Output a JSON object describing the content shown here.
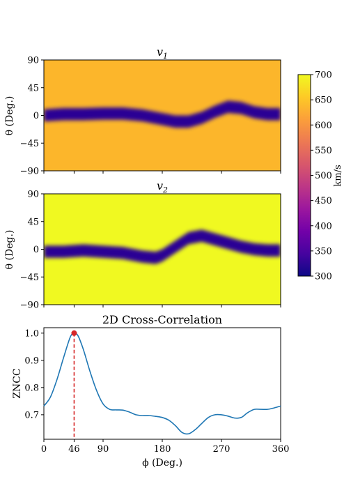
{
  "chart_data": [
    {
      "type": "heatmap",
      "title": "v1",
      "ylabel": "θ (Deg.)",
      "yticks": [
        "90",
        "45",
        "0",
        "−45",
        "−90"
      ],
      "ylim": [
        -90,
        90
      ],
      "xlim": [
        0,
        360
      ],
      "background_value": 620,
      "background_color": "#fcb62b",
      "band_color": "#2c0594",
      "band_center": [
        [
          0,
          0
        ],
        [
          30,
          2
        ],
        [
          60,
          2
        ],
        [
          90,
          3
        ],
        [
          120,
          3
        ],
        [
          150,
          0
        ],
        [
          180,
          -6
        ],
        [
          200,
          -10
        ],
        [
          220,
          -10
        ],
        [
          240,
          -4
        ],
        [
          260,
          6
        ],
        [
          280,
          14
        ],
        [
          300,
          12
        ],
        [
          320,
          5
        ],
        [
          340,
          2
        ],
        [
          360,
          2
        ]
      ],
      "band_halfwidth": 10
    },
    {
      "type": "heatmap",
      "title": "v2",
      "ylabel": "θ (Deg.)",
      "yticks": [
        "90",
        "45",
        "0",
        "−45",
        "−90"
      ],
      "ylim": [
        -90,
        90
      ],
      "xlim": [
        0,
        360
      ],
      "background_value": 690,
      "background_color": "#f0f921",
      "band_color": "#2c0594",
      "band_center": [
        [
          0,
          -4
        ],
        [
          30,
          -4
        ],
        [
          60,
          -2
        ],
        [
          90,
          -4
        ],
        [
          120,
          -6
        ],
        [
          150,
          -12
        ],
        [
          170,
          -14
        ],
        [
          180,
          -10
        ],
        [
          200,
          4
        ],
        [
          220,
          18
        ],
        [
          240,
          22
        ],
        [
          260,
          16
        ],
        [
          280,
          10
        ],
        [
          300,
          4
        ],
        [
          320,
          0
        ],
        [
          340,
          -2
        ],
        [
          360,
          -2
        ]
      ],
      "band_halfwidth": 10
    },
    {
      "type": "colorbar",
      "label": "km/s",
      "min": 300,
      "max": 700,
      "ticks": [
        "700",
        "650",
        "600",
        "550",
        "500",
        "450",
        "400",
        "350",
        "300"
      ],
      "colormap": [
        "#0d0887",
        "#46039f",
        "#7201a8",
        "#9c179e",
        "#bd3786",
        "#d8576b",
        "#ed7953",
        "#fb9f3a",
        "#fdca26",
        "#f0f921"
      ]
    },
    {
      "type": "line",
      "title": "2D Cross-Correlation",
      "xlabel": "ϕ (Deg.)",
      "ylabel": "ZNCC",
      "xlim": [
        0,
        360
      ],
      "ylim": [
        0.61,
        1.02
      ],
      "xticks": [
        0,
        46,
        90,
        180,
        270,
        360
      ],
      "xtick_labels": [
        "0",
        "46",
        "90",
        "180",
        "270",
        "360"
      ],
      "yticks": [
        0.7,
        0.8,
        0.9,
        1.0
      ],
      "ytick_labels": [
        "0.7",
        "0.8",
        "0.9",
        "1.0"
      ],
      "line_color": "#1f77b4",
      "peak": {
        "x": 46,
        "y": 1.0,
        "color": "#d62728"
      },
      "points": [
        [
          0,
          0.732
        ],
        [
          10,
          0.765
        ],
        [
          20,
          0.83
        ],
        [
          30,
          0.91
        ],
        [
          40,
          0.985
        ],
        [
          46,
          1.0
        ],
        [
          52,
          0.99
        ],
        [
          60,
          0.94
        ],
        [
          70,
          0.86
        ],
        [
          80,
          0.79
        ],
        [
          90,
          0.74
        ],
        [
          100,
          0.72
        ],
        [
          110,
          0.718
        ],
        [
          120,
          0.717
        ],
        [
          130,
          0.71
        ],
        [
          140,
          0.7
        ],
        [
          150,
          0.697
        ],
        [
          160,
          0.697
        ],
        [
          170,
          0.694
        ],
        [
          180,
          0.69
        ],
        [
          190,
          0.68
        ],
        [
          200,
          0.66
        ],
        [
          210,
          0.635
        ],
        [
          220,
          0.63
        ],
        [
          230,
          0.645
        ],
        [
          240,
          0.668
        ],
        [
          250,
          0.69
        ],
        [
          260,
          0.7
        ],
        [
          270,
          0.7
        ],
        [
          280,
          0.695
        ],
        [
          290,
          0.688
        ],
        [
          300,
          0.69
        ],
        [
          310,
          0.708
        ],
        [
          320,
          0.72
        ],
        [
          330,
          0.72
        ],
        [
          340,
          0.72
        ],
        [
          350,
          0.725
        ],
        [
          360,
          0.732
        ]
      ]
    }
  ]
}
